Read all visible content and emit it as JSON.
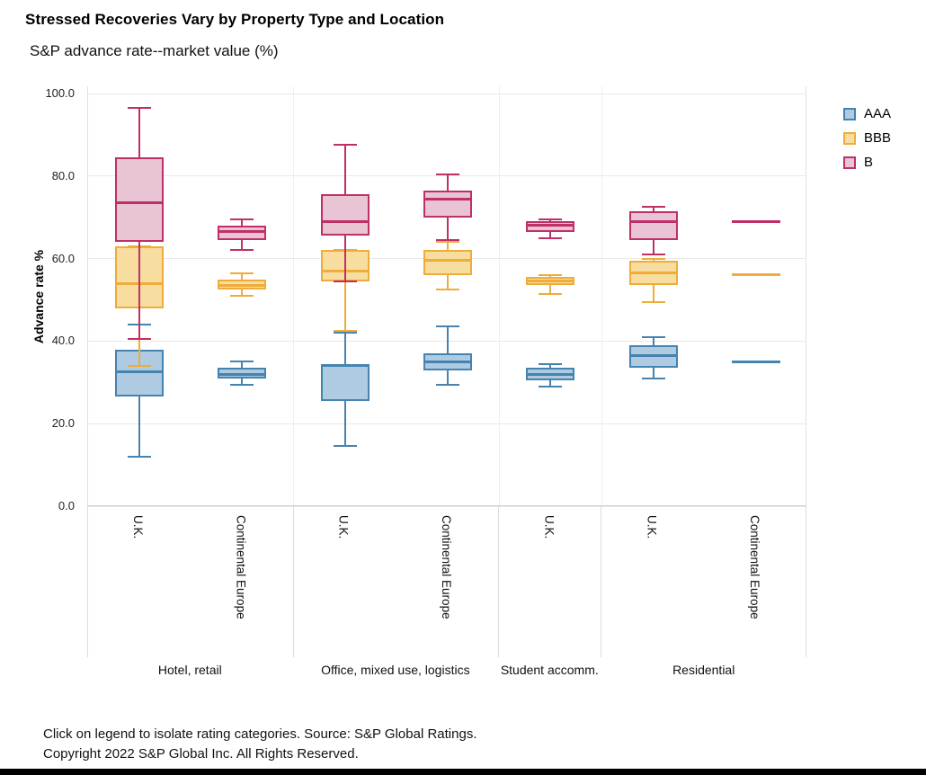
{
  "page": {
    "title": "Stressed Recoveries Vary by Property Type and Location",
    "subtitle": "S&P advance rate--market value (%)",
    "footer_line1": "Click on legend to isolate rating categories. Source: S&P Global Ratings.",
    "footer_line2": "Copyright 2022 S&P Global Inc. All Rights Reserved."
  },
  "legend": {
    "items": [
      {
        "label": "AAA",
        "fill": "#aecbe1",
        "stroke": "#4583b0"
      },
      {
        "label": "BBB",
        "fill": "#f8dda0",
        "stroke": "#efac38"
      },
      {
        "label": "B",
        "fill": "#e9c4d4",
        "stroke": "#bf2f68"
      }
    ]
  },
  "chart_data": {
    "type": "boxplot",
    "title": "Stressed Recoveries Vary by Property Type and Location",
    "subtitle": "S&P advance rate--market value (%)",
    "ylabel": "Advance rate %",
    "xlabel": "",
    "ylim": [
      0,
      100
    ],
    "yticks": [
      0,
      20,
      40,
      60,
      80,
      100
    ],
    "ytick_labels": [
      "0.0",
      "20.0",
      "40.0",
      "60.0",
      "80.0",
      "100.0"
    ],
    "grid": true,
    "legend_position": "top-right",
    "legend_entries": [
      "AAA",
      "BBB",
      "B"
    ],
    "groups": [
      {
        "label": "Hotel, retail",
        "locations": [
          "U.K.",
          "Continental Europe"
        ]
      },
      {
        "label": "Office, mixed use, logistics",
        "locations": [
          "U.K.",
          "Continental Europe"
        ]
      },
      {
        "label": "Student accomm.",
        "locations": [
          "U.K."
        ]
      },
      {
        "label": "Residential",
        "locations": [
          "U.K.",
          "Continental Europe"
        ]
      }
    ],
    "columns": [
      {
        "group": "Hotel, retail",
        "location": "U.K.",
        "boxes": {
          "AAA": {
            "low": 12,
            "q1": 26.5,
            "median": 32.5,
            "q3": 38,
            "high": 44
          },
          "BBB": {
            "low": 34,
            "q1": 48,
            "median": 54,
            "q3": 63,
            "high": 63
          },
          "B": {
            "low": 40.5,
            "q1": 64,
            "median": 73.5,
            "q3": 84.5,
            "high": 96.5
          }
        }
      },
      {
        "group": "Hotel, retail",
        "location": "Continental Europe",
        "boxes": {
          "AAA": {
            "low": 29.5,
            "q1": 31,
            "median": 32,
            "q3": 33.5,
            "high": 35
          },
          "BBB": {
            "low": 51,
            "q1": 52.5,
            "median": 53.5,
            "q3": 55,
            "high": 56.5
          },
          "B": {
            "low": 62,
            "q1": 64.5,
            "median": 66.5,
            "q3": 68,
            "high": 69.5
          }
        }
      },
      {
        "group": "Office, mixed use, logistics",
        "location": "U.K.",
        "boxes": {
          "AAA": {
            "low": 14.5,
            "q1": 25.5,
            "median": 34,
            "q3": 34.5,
            "high": 42
          },
          "BBB": {
            "low": 42.5,
            "q1": 54.5,
            "median": 57,
            "q3": 62,
            "high": 62
          },
          "B": {
            "low": 54.5,
            "q1": 65.5,
            "median": 69,
            "q3": 75.5,
            "high": 87.5
          }
        }
      },
      {
        "group": "Office, mixed use, logistics",
        "location": "Continental Europe",
        "boxes": {
          "AAA": {
            "low": 29.5,
            "q1": 33,
            "median": 35,
            "q3": 37,
            "high": 43.5
          },
          "BBB": {
            "low": 52.5,
            "q1": 56,
            "median": 59.5,
            "q3": 62,
            "high": 64
          },
          "B": {
            "low": 64.5,
            "q1": 70,
            "median": 74.5,
            "q3": 76.5,
            "high": 80.5
          }
        }
      },
      {
        "group": "Student accomm.",
        "location": "U.K.",
        "boxes": {
          "AAA": {
            "low": 29,
            "q1": 30.5,
            "median": 32,
            "q3": 33.5,
            "high": 34.5
          },
          "BBB": {
            "low": 51.5,
            "q1": 53.5,
            "median": 54.5,
            "q3": 55.5,
            "high": 56
          },
          "B": {
            "low": 65,
            "q1": 66.5,
            "median": 68,
            "q3": 69,
            "high": 69.5
          }
        }
      },
      {
        "group": "Residential",
        "location": "U.K.",
        "boxes": {
          "AAA": {
            "low": 31,
            "q1": 33.5,
            "median": 36.5,
            "q3": 39,
            "high": 41
          },
          "BBB": {
            "low": 49.5,
            "q1": 53.5,
            "median": 56.5,
            "q3": 59.5,
            "high": 60
          },
          "B": {
            "low": 61,
            "q1": 64.5,
            "median": 69,
            "q3": 71.5,
            "high": 72.5
          }
        }
      },
      {
        "group": "Residential",
        "location": "Continental Europe",
        "boxes": {
          "AAA": {
            "low": 35,
            "q1": 35,
            "median": 35,
            "q3": 35,
            "high": 35
          },
          "BBB": {
            "low": 56,
            "q1": 56,
            "median": 56,
            "q3": 56,
            "high": 56
          },
          "B": {
            "low": 69,
            "q1": 69,
            "median": 69,
            "q3": 69,
            "high": 69
          }
        }
      }
    ]
  }
}
